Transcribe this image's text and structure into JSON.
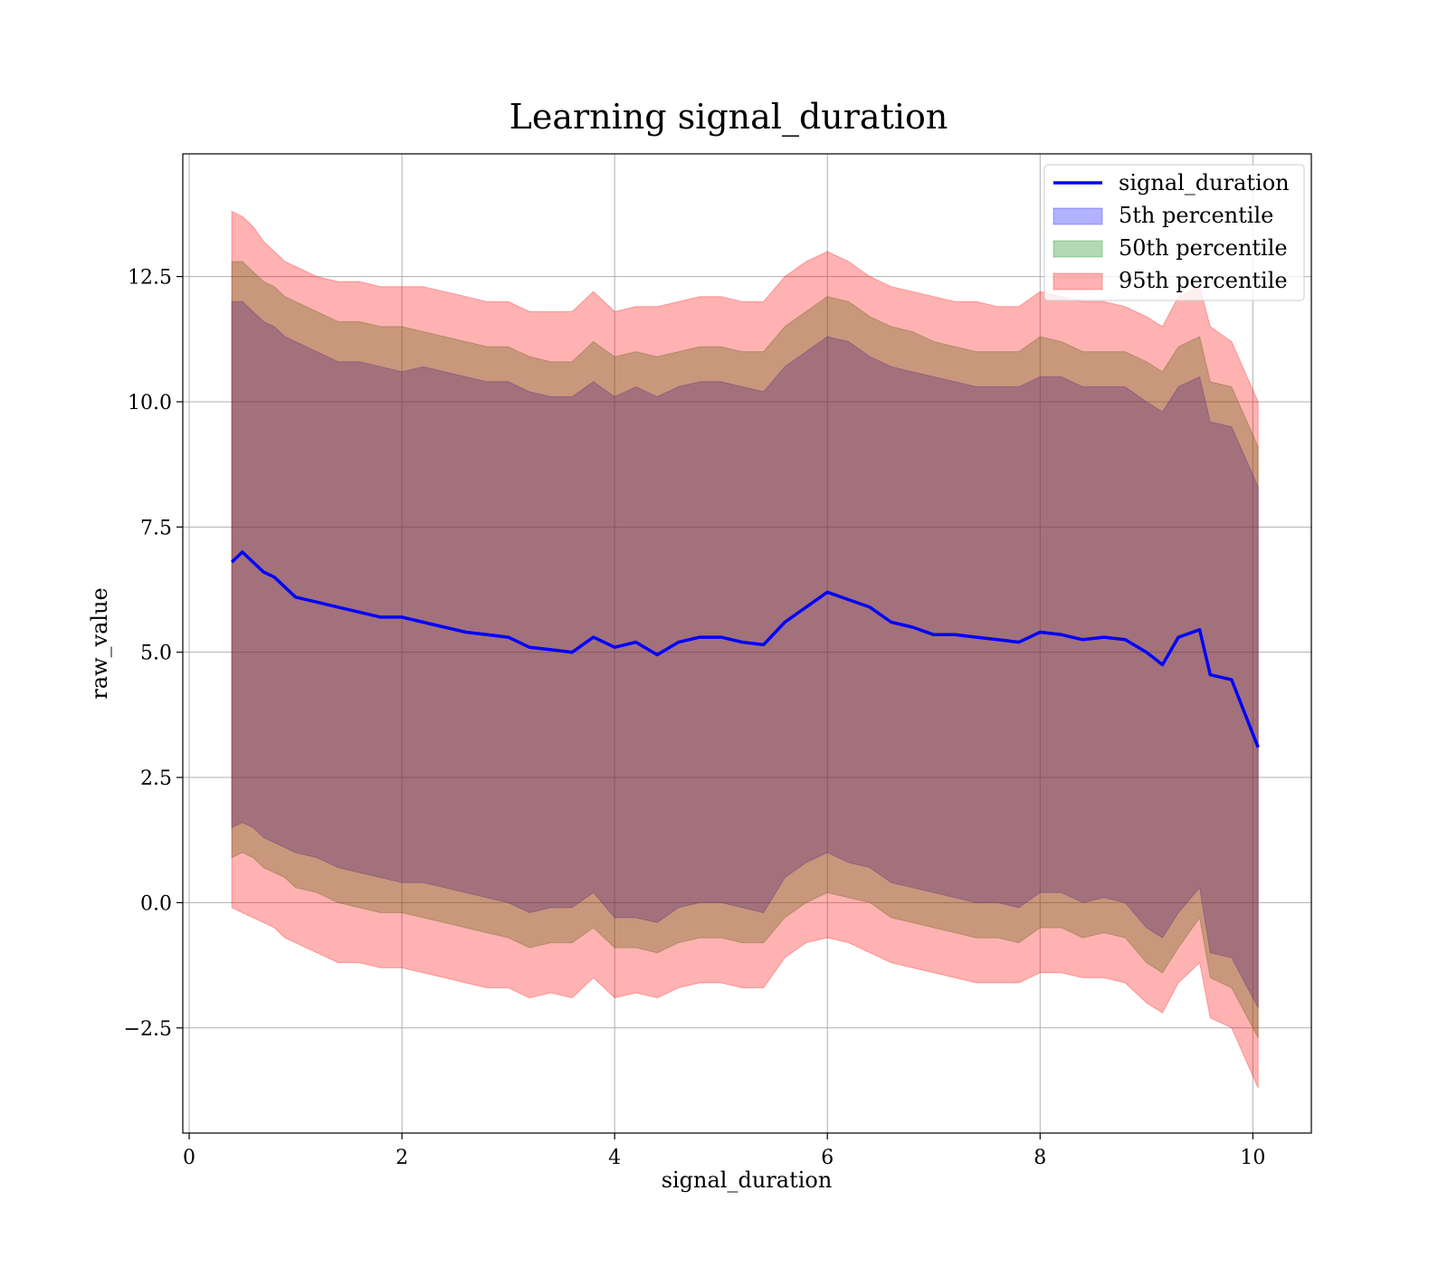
{
  "chart_data": {
    "type": "area",
    "title": "Learning signal_duration",
    "xlabel": "signal_duration",
    "ylabel": "raw_value",
    "xlim": [
      -0.06,
      10.55
    ],
    "ylim": [
      -4.6,
      14.95
    ],
    "xticks": [
      0,
      2,
      4,
      6,
      8,
      10
    ],
    "xtick_labels": [
      "0",
      "2",
      "4",
      "6",
      "8",
      "10"
    ],
    "yticks": [
      -2.5,
      0.0,
      2.5,
      5.0,
      7.5,
      10.0,
      12.5
    ],
    "ytick_labels": [
      "−2.5",
      "0.0",
      "2.5",
      "5.0",
      "7.5",
      "10.0",
      "12.5"
    ],
    "grid": true,
    "legend_position": "top-right",
    "x": [
      0.4,
      0.5,
      0.6,
      0.7,
      0.8,
      0.9,
      1.0,
      1.2,
      1.4,
      1.6,
      1.8,
      2.0,
      2.2,
      2.4,
      2.6,
      2.8,
      3.0,
      3.2,
      3.4,
      3.6,
      3.8,
      4.0,
      4.2,
      4.4,
      4.6,
      4.8,
      5.0,
      5.2,
      5.4,
      5.6,
      5.8,
      6.0,
      6.2,
      6.4,
      6.6,
      6.8,
      7.0,
      7.2,
      7.4,
      7.6,
      7.8,
      8.0,
      8.2,
      8.4,
      8.6,
      8.8,
      9.0,
      9.15,
      9.3,
      9.5,
      9.6,
      9.8,
      10.05
    ],
    "series": [
      {
        "name": "signal_duration",
        "kind": "line",
        "color": "#0000ff",
        "values": [
          6.8,
          7.0,
          6.8,
          6.6,
          6.5,
          6.3,
          6.1,
          6.0,
          5.9,
          5.8,
          5.7,
          5.7,
          5.6,
          5.5,
          5.4,
          5.35,
          5.3,
          5.1,
          5.05,
          5.0,
          5.3,
          5.1,
          5.2,
          4.95,
          5.2,
          5.3,
          5.3,
          5.2,
          5.15,
          5.6,
          5.9,
          6.2,
          6.05,
          5.9,
          5.6,
          5.5,
          5.35,
          5.35,
          5.3,
          5.25,
          5.2,
          5.4,
          5.35,
          5.25,
          5.3,
          5.25,
          5.0,
          4.75,
          5.3,
          5.45,
          4.55,
          4.45,
          3.1
        ]
      },
      {
        "name": "5th percentile",
        "kind": "band",
        "color": "#0000ff",
        "lower": [
          1.5,
          1.6,
          1.5,
          1.3,
          1.2,
          1.1,
          1.0,
          0.9,
          0.7,
          0.6,
          0.5,
          0.4,
          0.4,
          0.3,
          0.2,
          0.1,
          0.0,
          -0.2,
          -0.1,
          -0.1,
          0.2,
          -0.3,
          -0.3,
          -0.4,
          -0.1,
          0.0,
          0.0,
          -0.1,
          -0.2,
          0.5,
          0.8,
          1.0,
          0.8,
          0.7,
          0.4,
          0.3,
          0.2,
          0.1,
          0.0,
          0.0,
          -0.1,
          0.2,
          0.2,
          0.0,
          0.1,
          0.0,
          -0.5,
          -0.7,
          -0.2,
          0.3,
          -1.0,
          -1.1,
          -2.1
        ],
        "upper": [
          12.0,
          12.0,
          11.8,
          11.6,
          11.5,
          11.3,
          11.2,
          11.0,
          10.8,
          10.8,
          10.7,
          10.6,
          10.7,
          10.6,
          10.5,
          10.4,
          10.4,
          10.2,
          10.1,
          10.1,
          10.4,
          10.1,
          10.3,
          10.1,
          10.3,
          10.4,
          10.4,
          10.3,
          10.2,
          10.7,
          11.0,
          11.3,
          11.2,
          10.9,
          10.7,
          10.6,
          10.5,
          10.4,
          10.3,
          10.3,
          10.3,
          10.5,
          10.5,
          10.3,
          10.3,
          10.3,
          10.0,
          9.8,
          10.3,
          10.5,
          9.6,
          9.5,
          8.3
        ]
      },
      {
        "name": "50th percentile",
        "kind": "band",
        "color": "#008000",
        "lower": [
          0.9,
          1.0,
          0.9,
          0.7,
          0.6,
          0.5,
          0.3,
          0.2,
          0.0,
          -0.1,
          -0.2,
          -0.2,
          -0.3,
          -0.4,
          -0.5,
          -0.6,
          -0.7,
          -0.9,
          -0.8,
          -0.8,
          -0.5,
          -0.9,
          -0.9,
          -1.0,
          -0.8,
          -0.7,
          -0.7,
          -0.8,
          -0.8,
          -0.3,
          0.0,
          0.2,
          0.1,
          0.0,
          -0.3,
          -0.4,
          -0.5,
          -0.6,
          -0.7,
          -0.7,
          -0.8,
          -0.5,
          -0.5,
          -0.7,
          -0.6,
          -0.7,
          -1.2,
          -1.4,
          -0.9,
          -0.3,
          -1.5,
          -1.7,
          -2.7
        ],
        "upper": [
          12.8,
          12.8,
          12.6,
          12.4,
          12.3,
          12.1,
          12.0,
          11.8,
          11.6,
          11.6,
          11.5,
          11.5,
          11.4,
          11.3,
          11.2,
          11.1,
          11.1,
          10.9,
          10.8,
          10.8,
          11.2,
          10.9,
          11.0,
          10.9,
          11.0,
          11.1,
          11.1,
          11.0,
          11.0,
          11.5,
          11.8,
          12.1,
          12.0,
          11.7,
          11.5,
          11.4,
          11.2,
          11.1,
          11.0,
          11.0,
          11.0,
          11.3,
          11.2,
          11.0,
          11.0,
          11.0,
          10.8,
          10.6,
          11.1,
          11.3,
          10.4,
          10.3,
          9.1
        ]
      },
      {
        "name": "95th percentile",
        "kind": "band",
        "color": "#ff0000",
        "lower": [
          -0.1,
          -0.2,
          -0.3,
          -0.4,
          -0.5,
          -0.7,
          -0.8,
          -1.0,
          -1.2,
          -1.2,
          -1.3,
          -1.3,
          -1.4,
          -1.5,
          -1.6,
          -1.7,
          -1.7,
          -1.9,
          -1.8,
          -1.9,
          -1.5,
          -1.9,
          -1.8,
          -1.9,
          -1.7,
          -1.6,
          -1.6,
          -1.7,
          -1.7,
          -1.1,
          -0.8,
          -0.7,
          -0.8,
          -1.0,
          -1.2,
          -1.3,
          -1.4,
          -1.5,
          -1.6,
          -1.6,
          -1.6,
          -1.4,
          -1.4,
          -1.5,
          -1.5,
          -1.6,
          -2.0,
          -2.2,
          -1.6,
          -1.2,
          -2.3,
          -2.5,
          -3.7
        ],
        "upper": [
          13.8,
          13.7,
          13.5,
          13.2,
          13.0,
          12.8,
          12.7,
          12.5,
          12.4,
          12.4,
          12.3,
          12.3,
          12.3,
          12.2,
          12.1,
          12.0,
          12.0,
          11.8,
          11.8,
          11.8,
          12.2,
          11.8,
          11.9,
          11.9,
          12.0,
          12.1,
          12.1,
          12.0,
          12.0,
          12.5,
          12.8,
          13.0,
          12.8,
          12.5,
          12.3,
          12.2,
          12.1,
          12.0,
          12.0,
          11.9,
          11.9,
          12.2,
          12.1,
          12.0,
          12.0,
          11.9,
          11.7,
          11.5,
          12.1,
          12.3,
          11.5,
          11.2,
          10.0
        ]
      }
    ]
  }
}
